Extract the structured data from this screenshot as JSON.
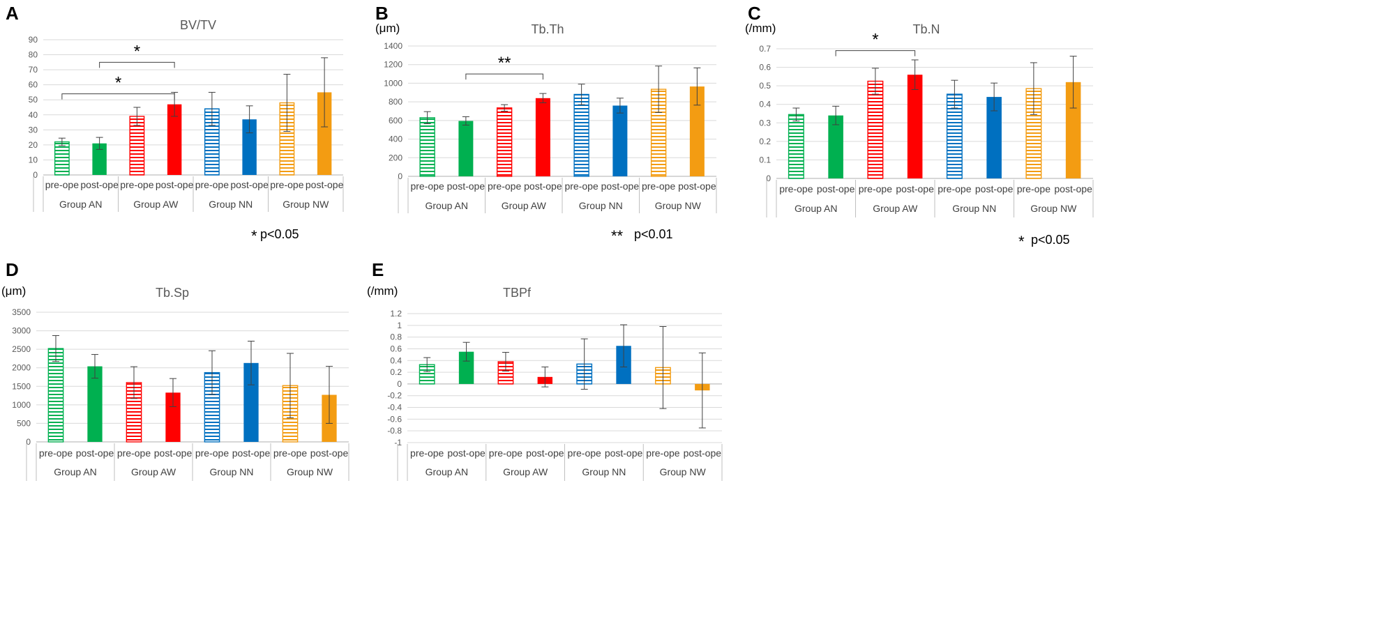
{
  "palette": {
    "an": "#00b050",
    "aw": "#ff0000",
    "nn": "#0070c0",
    "nw": "#f39c12",
    "grid": "#d9d9d9",
    "axis": "#bfbfbf",
    "error": "#404040"
  },
  "chart_data": [
    {
      "panel": "A",
      "type": "bar",
      "title": "BV/TV",
      "ylabel": "",
      "ylim": [
        0,
        90
      ],
      "yticks": [
        "0",
        "10",
        "20",
        "30",
        "40",
        "50",
        "60",
        "70",
        "80",
        "90"
      ],
      "subcategories": [
        "pre-ope",
        "post-ope",
        "pre-ope",
        "post-ope",
        "pre-ope",
        "post-ope",
        "pre-ope",
        "post-ope"
      ],
      "groups": [
        "Group AN",
        "Group AW",
        "Group NN",
        "Group NW"
      ],
      "values": [
        22,
        21,
        39,
        47,
        44,
        37,
        48,
        55
      ],
      "errors": [
        2.5,
        4,
        6,
        8,
        11,
        9,
        19,
        23
      ],
      "significance": [
        {
          "from": 0,
          "to": 3,
          "level": 54,
          "mark": "*"
        },
        {
          "from": 1,
          "to": 3,
          "level": 75,
          "mark": "*"
        }
      ],
      "pvalue": {
        "mark": "*",
        "text": "p<0.05"
      }
    },
    {
      "panel": "B",
      "type": "bar",
      "title": "Tb.Th",
      "ylabel": "(μm)",
      "ylim": [
        0,
        1400
      ],
      "yticks": [
        "0",
        "200",
        "400",
        "600",
        "800",
        "1000",
        "1200",
        "1400"
      ],
      "subcategories": [
        "pre-ope",
        "post-ope",
        "pre-ope",
        "post-ope",
        "pre-ope",
        "post-ope",
        "pre-ope",
        "post-ope"
      ],
      "groups": [
        "Group AN",
        "Group AW",
        "Group NN",
        "Group NW"
      ],
      "values": [
        630,
        595,
        735,
        840,
        880,
        760,
        935,
        965
      ],
      "errors": [
        65,
        45,
        35,
        50,
        110,
        80,
        250,
        200
      ],
      "significance": [
        {
          "from": 1,
          "to": 3,
          "level": 1100,
          "mark": "**"
        }
      ],
      "pvalue": {
        "mark": "**",
        "text": "p<0.01"
      }
    },
    {
      "panel": "C",
      "type": "bar",
      "title": "Tb.N",
      "ylabel": "(/mm)",
      "ylim": [
        0,
        0.7
      ],
      "yticks": [
        "0",
        "0.1",
        "0.2",
        "0.3",
        "0.4",
        "0.5",
        "0.6",
        "0.7"
      ],
      "subcategories": [
        "pre-ope",
        "post-ope",
        "pre-ope",
        "post-ope",
        "pre-ope",
        "post-ope",
        "pre-ope",
        "post-ope"
      ],
      "groups": [
        "Group AN",
        "Group AW",
        "Group NN",
        "Group NW"
      ],
      "values": [
        0.345,
        0.34,
        0.525,
        0.56,
        0.455,
        0.44,
        0.485,
        0.52
      ],
      "errors": [
        0.035,
        0.05,
        0.07,
        0.08,
        0.075,
        0.075,
        0.14,
        0.14
      ],
      "significance": [
        {
          "from": 1,
          "to": 3,
          "level": 0.69,
          "mark": "*"
        }
      ],
      "pvalue": {
        "mark": "*",
        "text": "p<0.05"
      }
    },
    {
      "panel": "D",
      "type": "bar",
      "title": "Tb.Sp",
      "ylabel": "(μm)",
      "ylim": [
        0,
        3500
      ],
      "yticks": [
        "0",
        "500",
        "1000",
        "1500",
        "2000",
        "2500",
        "3000",
        "3500"
      ],
      "subcategories": [
        "pre-ope",
        "post-ope",
        "pre-ope",
        "post-ope",
        "pre-ope",
        "post-ope",
        "pre-ope",
        "post-ope"
      ],
      "groups": [
        "Group AN",
        "Group AW",
        "Group NN",
        "Group NW"
      ],
      "values": [
        2520,
        2040,
        1600,
        1330,
        1870,
        2130,
        1520,
        1270
      ],
      "errors": [
        350,
        320,
        430,
        380,
        590,
        590,
        870,
        770
      ],
      "significance": [],
      "pvalue": null
    },
    {
      "panel": "E",
      "type": "bar",
      "title": "TBPf",
      "ylabel": "(/mm)",
      "ylim": [
        -1,
        1.2
      ],
      "yticks": [
        "-1",
        "-0.8",
        "-0.6",
        "-0.4",
        "-0.2",
        "0",
        "0.2",
        "0.4",
        "0.6",
        "0.8",
        "1",
        "1.2"
      ],
      "subcategories": [
        "pre-ope",
        "post-ope",
        "pre-ope",
        "post-ope",
        "pre-ope",
        "post-ope",
        "pre-ope",
        "post-ope"
      ],
      "groups": [
        "Group AN",
        "Group AW",
        "Group NN",
        "Group NW"
      ],
      "values": [
        0.33,
        0.55,
        0.38,
        0.12,
        0.34,
        0.65,
        0.28,
        -0.11
      ],
      "errors": [
        0.12,
        0.16,
        0.16,
        0.17,
        0.43,
        0.36,
        0.7,
        0.64
      ],
      "significance": [],
      "pvalue": null
    }
  ]
}
